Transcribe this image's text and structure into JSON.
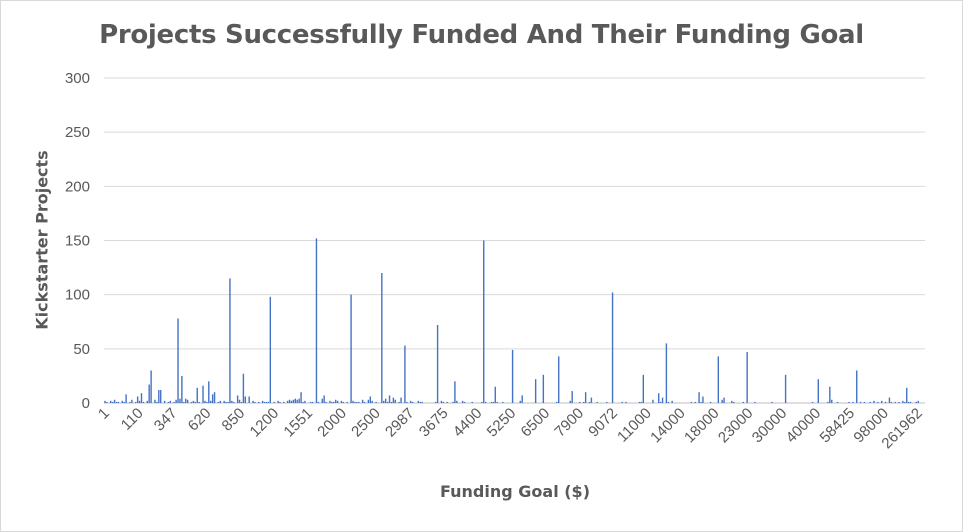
{
  "chart_data": {
    "type": "bar",
    "title": "Projects Successfully Funded And Their Funding Goal",
    "xlabel": "Funding Goal ($)",
    "ylabel": "Kickstarter Projects",
    "ylim": [
      0,
      300
    ],
    "y_ticks": [
      "0",
      "50",
      "100",
      "150",
      "200",
      "250",
      "300"
    ],
    "grid": true,
    "legend": "none",
    "color": "#4472c4",
    "x_tick_labels": [
      "1",
      "110",
      "347",
      "620",
      "850",
      "1200",
      "1551",
      "2000",
      "2500",
      "2987",
      "3675",
      "4400",
      "5250",
      "6500",
      "7900",
      "9072",
      "11000",
      "14000",
      "18000",
      "23000",
      "30000",
      "40000",
      "58425",
      "98000",
      "261962"
    ],
    "values": [
      2,
      1,
      0,
      2,
      1,
      3,
      1,
      1,
      0,
      2,
      1,
      8,
      0,
      1,
      3,
      0,
      1,
      6,
      2,
      9,
      1,
      0,
      2,
      17,
      30,
      0,
      3,
      1,
      12,
      12,
      0,
      2,
      0,
      1,
      2,
      0,
      1,
      3,
      78,
      4,
      25,
      1,
      4,
      3,
      0,
      1,
      2,
      1,
      14,
      1,
      0,
      16,
      2,
      1,
      20,
      2,
      8,
      10,
      0,
      1,
      2,
      0,
      2,
      1,
      1,
      115,
      2,
      1,
      0,
      7,
      3,
      1,
      27,
      6,
      0,
      6,
      0,
      2,
      1,
      0,
      1,
      0,
      2,
      1,
      1,
      1,
      98,
      0,
      1,
      0,
      2,
      1,
      0,
      1,
      0,
      2,
      3,
      2,
      3,
      4,
      3,
      4,
      10,
      1,
      2,
      0,
      0,
      1,
      1,
      0,
      152,
      1,
      0,
      4,
      7,
      1,
      0,
      2,
      1,
      1,
      3,
      2,
      0,
      2,
      1,
      0,
      1,
      0,
      100,
      2,
      1,
      1,
      1,
      0,
      3,
      1,
      0,
      3,
      6,
      2,
      0,
      1,
      0,
      0,
      120,
      2,
      4,
      1,
      7,
      1,
      5,
      3,
      0,
      1,
      5,
      0,
      53,
      1,
      0,
      2,
      1,
      0,
      0,
      2,
      1,
      1,
      0,
      0,
      0,
      0,
      0,
      0,
      1,
      72,
      0,
      2,
      1,
      0,
      1,
      0,
      0,
      1,
      20,
      2,
      0,
      0,
      2,
      1,
      0,
      0,
      0,
      1,
      0,
      0,
      0,
      0,
      1,
      150,
      1,
      0,
      0,
      1,
      1,
      15,
      1,
      0,
      0,
      1,
      0,
      0,
      0,
      0,
      49,
      0,
      0,
      0,
      2,
      7,
      0,
      0,
      0,
      0,
      0,
      0,
      22,
      0,
      0,
      0,
      26,
      0,
      0,
      0,
      0,
      0,
      0,
      1,
      43,
      0,
      0,
      0,
      0,
      0,
      2,
      11,
      0,
      0,
      0,
      1,
      0,
      1,
      10,
      0,
      1,
      5,
      0,
      0,
      1,
      0,
      0,
      0,
      0,
      1,
      0,
      0,
      102,
      0,
      0,
      0,
      0,
      1,
      0,
      1,
      0,
      0,
      0,
      0,
      0,
      0,
      1,
      1,
      26,
      0,
      0,
      0,
      0,
      3,
      0,
      0,
      9,
      1,
      5,
      0,
      55,
      1,
      0,
      2,
      0,
      0,
      0,
      0,
      0,
      0,
      0,
      0,
      0,
      1,
      0,
      1,
      0,
      10,
      1,
      6,
      0,
      0,
      0,
      1,
      0,
      0,
      0,
      43,
      0,
      3,
      5,
      0,
      0,
      0,
      2,
      1,
      0,
      0,
      0,
      0,
      1,
      0,
      47,
      0,
      0,
      0,
      1,
      0,
      0,
      0,
      0,
      0,
      0,
      0,
      0,
      1,
      0,
      0,
      0,
      0,
      0,
      0,
      26,
      0,
      0,
      0,
      0,
      0,
      0,
      0,
      0,
      0,
      0,
      0,
      0,
      0,
      1,
      0,
      0,
      22,
      0,
      0,
      0,
      0,
      1,
      15,
      3,
      0,
      0,
      1,
      0,
      0,
      0,
      0,
      0,
      1,
      0,
      1,
      0,
      30,
      0,
      1,
      0,
      1,
      0,
      0,
      1,
      0,
      2,
      0,
      1,
      0,
      2,
      0,
      1,
      0,
      5,
      1,
      0,
      1,
      0,
      1,
      0,
      2,
      1,
      14,
      1,
      1,
      0,
      0,
      1,
      2,
      0,
      0,
      0
    ]
  }
}
